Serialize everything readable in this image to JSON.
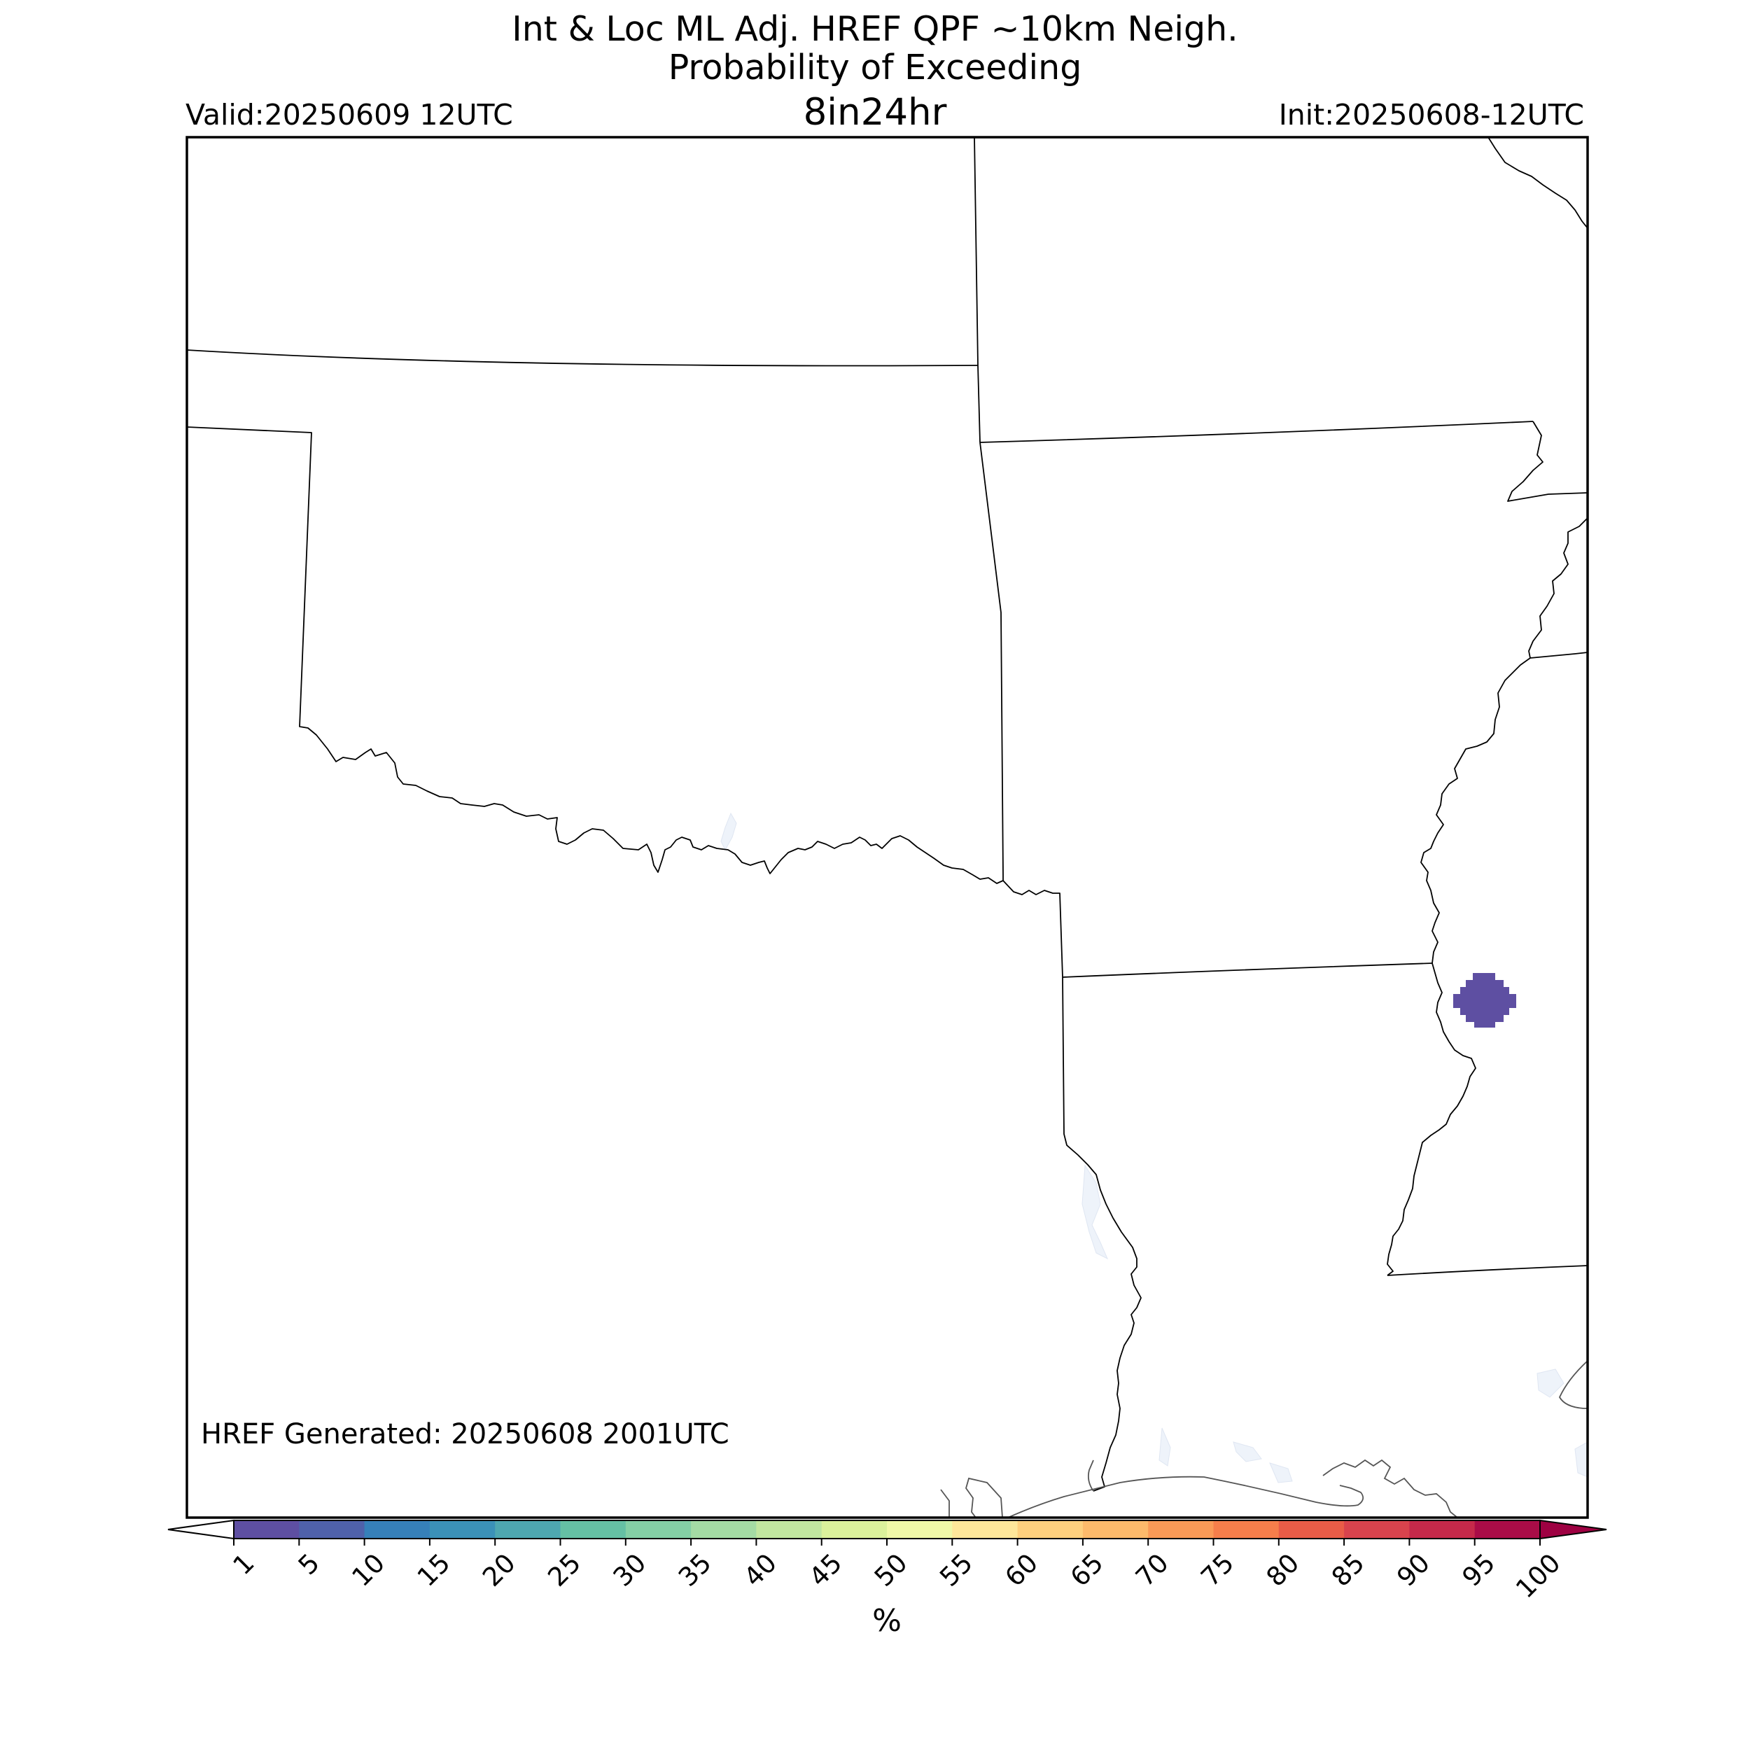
{
  "title": {
    "line1": "Int & Loc ML Adj. HREF QPF ~10km Neigh.",
    "line2": "Probability of Exceeding",
    "threshold": "8in24hr"
  },
  "valid": "Valid:20250609 12UTC",
  "init": "Init:20250608-12UTC",
  "generated": "HREF Generated: 20250608 2001UTC",
  "colorbar": {
    "unit_label": "%",
    "ticks": [
      "1",
      "5",
      "10",
      "15",
      "20",
      "25",
      "30",
      "35",
      "40",
      "45",
      "50",
      "55",
      "60",
      "65",
      "70",
      "75",
      "80",
      "85",
      "90",
      "95",
      "100"
    ],
    "colors": [
      "#5e4fa2",
      "#4f61aa",
      "#3680b9",
      "#3b91b8",
      "#4ea7b0",
      "#65c0a4",
      "#84cfa5",
      "#a4dba4",
      "#c1e6a0",
      "#dbf19b",
      "#f0f8a8",
      "#fee79a",
      "#fed07e",
      "#fdba6b",
      "#fa9a57",
      "#f67e4b",
      "#e95c47",
      "#d8434d",
      "#c5294a",
      "#a90c47"
    ],
    "under_color": "#ffffff",
    "over_color": "#9e0142"
  },
  "probability_features": [
    {
      "value_range": "1-5",
      "color": "#5e4fa2"
    }
  ],
  "map": {
    "boundaries": "US state borders and coastlines",
    "water_color": "#eef3fa"
  }
}
